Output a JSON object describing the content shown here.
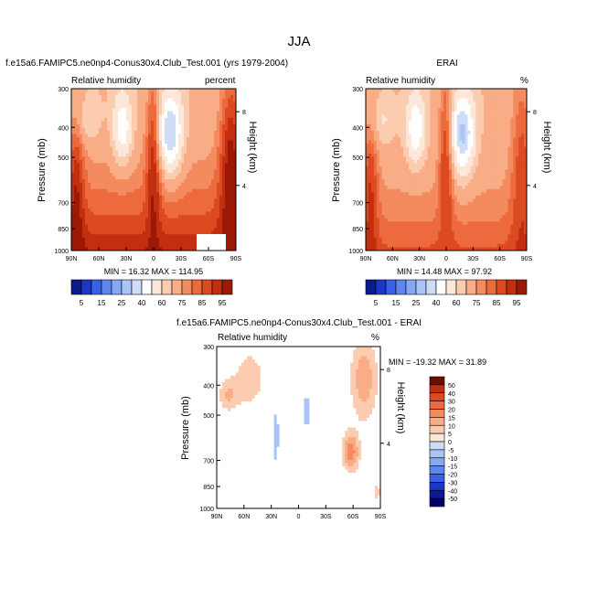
{
  "page_title": "JJA",
  "colors": {
    "blue": [
      "#0b1a8c",
      "#1c36c9",
      "#3a5fe8",
      "#5e86f0",
      "#86a8f3",
      "#aac4f5",
      "#cddcf7"
    ],
    "neutral": "#ffffff",
    "red": [
      "#fde7d9",
      "#fbccb0",
      "#f8ad86",
      "#f48b5f",
      "#ec6a3e",
      "#db4a20",
      "#c12f10",
      "#9c1a05",
      "#700b00"
    ]
  },
  "chart_data": [
    {
      "type": "heatmap",
      "id": "model",
      "title": "f.e15a6.FAMIPC5.ne0np4-Conus30x4.Club_Test.001 (yrs 1979-2004)",
      "left_label": "Relative humidity",
      "right_label": "percent",
      "ylabel": "Pressure (mb)",
      "y2label": "Height (km)",
      "x_ticks": [
        "90N",
        "60N",
        "30N",
        "0",
        "30S",
        "60S",
        "90S"
      ],
      "y_ticks": [
        "300",
        "400",
        "500",
        "700",
        "850",
        "1000"
      ],
      "y2_ticks": [
        "8",
        "4"
      ],
      "stats": "MIN = 16.32   MAX = 114.95",
      "min": 16.32,
      "max": 114.95,
      "colorbar_labels": [
        "5",
        "15",
        "25",
        "40",
        "60",
        "75",
        "85",
        "95"
      ]
    },
    {
      "type": "heatmap",
      "id": "obs",
      "title": "ERAI",
      "left_label": "Relative humidity",
      "right_label": "%",
      "ylabel": "Pressure (mb)",
      "y2label": "Height (km)",
      "x_ticks": [
        "90N",
        "60N",
        "30N",
        "0",
        "30S",
        "60S",
        "90S"
      ],
      "y_ticks": [
        "300",
        "400",
        "500",
        "700",
        "850",
        "1000"
      ],
      "y2_ticks": [
        "8",
        "4"
      ],
      "stats": "MIN = 14.48   MAX = 97.92",
      "min": 14.48,
      "max": 97.92,
      "colorbar_labels": [
        "5",
        "15",
        "25",
        "40",
        "60",
        "75",
        "85",
        "95"
      ]
    },
    {
      "type": "heatmap",
      "id": "diff",
      "title": "f.e15a6.FAMIPC5.ne0np4-Conus30x4.Club_Test.001 - ERAI",
      "left_label": "Relative humidity",
      "right_label": "%",
      "ylabel": "Pressure (mb)",
      "y2label": "Height (km)",
      "x_ticks": [
        "90N",
        "60N",
        "30N",
        "0",
        "30S",
        "60S",
        "90S"
      ],
      "y_ticks": [
        "300",
        "400",
        "500",
        "700",
        "850",
        "1000"
      ],
      "y2_ticks": [
        "8",
        "4"
      ],
      "stats": "MIN = -19.32   MAX = 31.89",
      "min": -19.32,
      "max": 31.89,
      "colorbar_labels": [
        "50",
        "40",
        "30",
        "20",
        "15",
        "10",
        "5",
        "0",
        "-5",
        "-10",
        "-15",
        "-20",
        "-30",
        "-40",
        "-50"
      ]
    }
  ]
}
